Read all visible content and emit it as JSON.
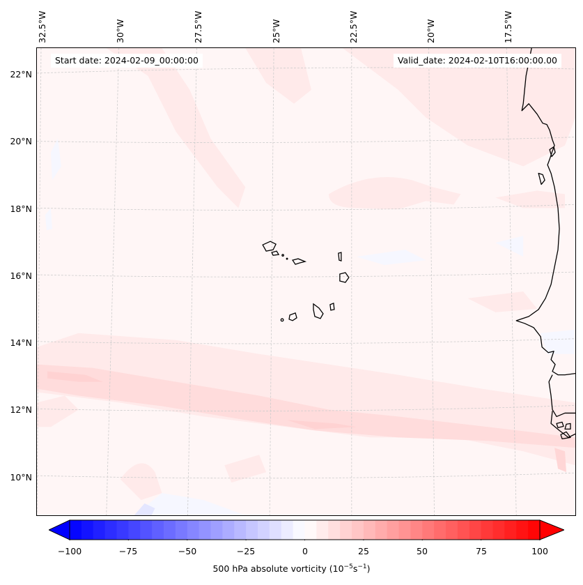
{
  "figure": {
    "start_date_label": "Start date: 2024-02-09_00:00:00",
    "valid_date_label": "Valid_date: 2024-02-10T16:00:00.00"
  },
  "map": {
    "projection": "Lambert conformal (regional)",
    "lon_labels": [
      "32.5°W",
      "30°W",
      "27.5°W",
      "25°W",
      "22.5°W",
      "20°W",
      "17.5°W"
    ],
    "lat_labels": [
      "22°N",
      "20°N",
      "18°N",
      "16°N",
      "14°N",
      "12°N",
      "10°N"
    ],
    "features": [
      "West African coastline (Mauritania, Senegal, Gambia, Guinea-Bissau)",
      "Cape Verde islands"
    ],
    "field": "500 hPa absolute vorticity",
    "background_color": "#fff6f6"
  },
  "colorbar": {
    "title_text": "500 hPa absolute vorticity (10",
    "title_exp1": "−5",
    "title_mid": "s",
    "title_exp2": "−1",
    "title_end": ")",
    "ticks": [
      "−100",
      "−75",
      "−50",
      "−25",
      "0",
      "25",
      "50",
      "75",
      "100"
    ],
    "min": -100,
    "max": 100,
    "step": 5,
    "extend": "both",
    "cmap": "bwr",
    "colors": {
      "low": "#0000ff",
      "mid": "#ffffff",
      "high": "#ff0000"
    }
  },
  "chart_data": {
    "type": "heatmap",
    "title": "",
    "variable": "500 hPa absolute vorticity",
    "units": "10^-5 s^-1",
    "color_range": [
      -100,
      100
    ],
    "xlabel_ticks": [
      "32.5°W",
      "30°W",
      "27.5°W",
      "25°W",
      "22.5°W",
      "20°W",
      "17.5°W"
    ],
    "ylabel_ticks": [
      "22°N",
      "20°N",
      "18°N",
      "16°N",
      "14°N",
      "12°N",
      "10°N"
    ],
    "description": "Weak positive vorticity (~0–15) across domain, bands near 13°N and 11–12°N reaching ~10–20; small weak negative patches near 9°N and west edge."
  }
}
